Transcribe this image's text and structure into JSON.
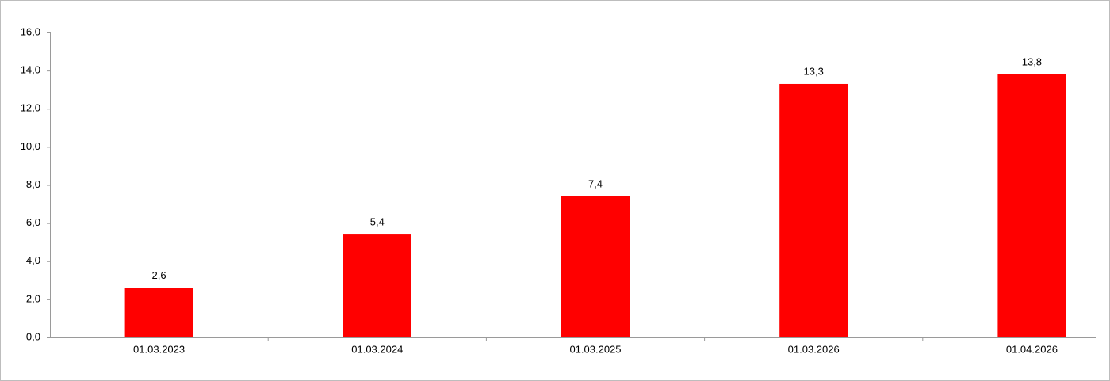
{
  "chart_data": {
    "type": "bar",
    "categories": [
      "01.03.2023",
      "01.03.2024",
      "01.03.2025",
      "01.03.2026",
      "01.04.2026"
    ],
    "values": [
      2.6,
      5.4,
      7.4,
      13.3,
      13.8
    ],
    "value_labels": [
      "2,6",
      "5,4",
      "7,4",
      "13,3",
      "13,8"
    ],
    "color": "#ff0000",
    "ylim": [
      0,
      16
    ],
    "yticks": [
      {
        "value": 0,
        "label": "0,0"
      },
      {
        "value": 2,
        "label": "2,0"
      },
      {
        "value": 4,
        "label": "4,0"
      },
      {
        "value": 6,
        "label": "6,0"
      },
      {
        "value": 8,
        "label": "8,0"
      },
      {
        "value": 10,
        "label": "10,0"
      },
      {
        "value": 12,
        "label": "12,0"
      },
      {
        "value": 14,
        "label": "14,0"
      },
      {
        "value": 16,
        "label": "16,0"
      }
    ],
    "grid": false
  }
}
